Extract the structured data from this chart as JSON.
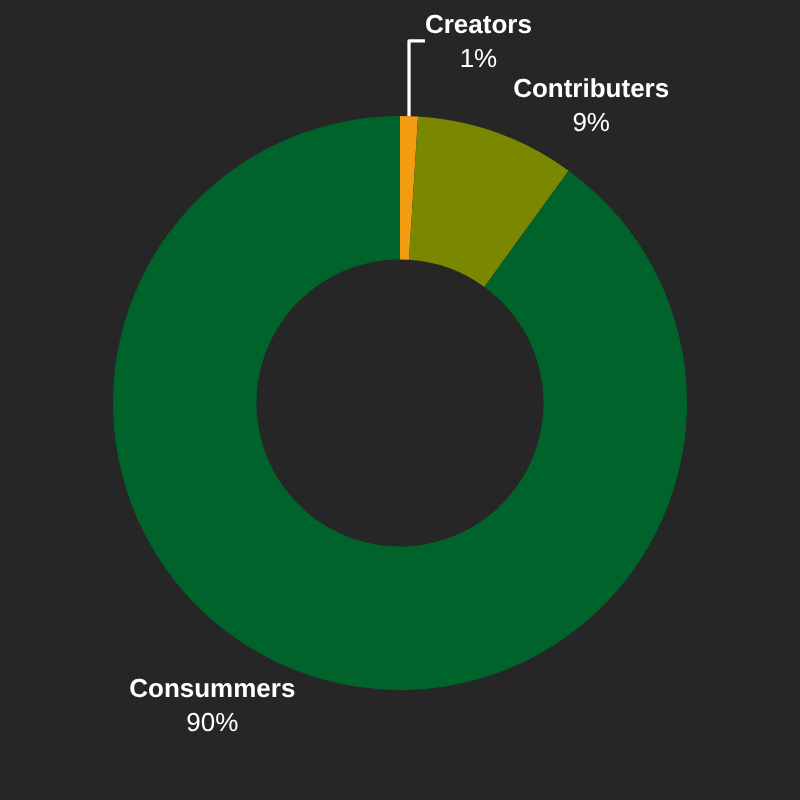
{
  "chart_data": {
    "type": "donut",
    "categories": [
      "Creators",
      "Contributers",
      "Consummers"
    ],
    "values": [
      1,
      9,
      90
    ],
    "value_labels": [
      "1%",
      "9%",
      "90%"
    ],
    "colors": [
      "#f39c12",
      "#7a8700",
      "#00632b"
    ],
    "legend": false
  }
}
